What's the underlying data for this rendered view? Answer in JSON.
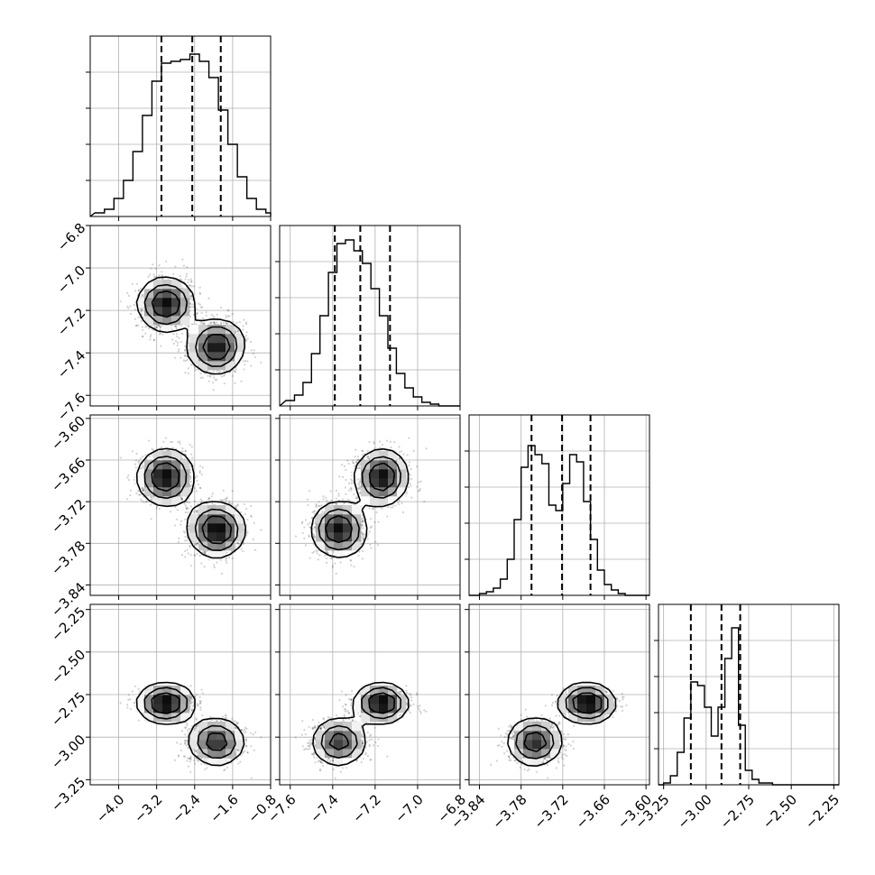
{
  "chart_data": {
    "type": "corner",
    "grid": true,
    "params": [
      {
        "range": [
          -4.6,
          -0.8
        ],
        "ticks": [
          -4.0,
          -3.2,
          -2.4,
          -1.6,
          -0.8
        ],
        "tick_labels": [
          "−4.0",
          "−3.2",
          "−2.4",
          "−1.6",
          "−0.8"
        ],
        "quantiles": [
          -3.1,
          -2.45,
          -1.85
        ],
        "mode": "normal",
        "center": -2.45,
        "sd": 0.6,
        "modes": [],
        "bins_x": [
          -4.4,
          -4.2,
          -4.0,
          -3.8,
          -3.6,
          -3.4,
          -3.2,
          -3.0,
          -2.8,
          -2.6,
          -2.4,
          -2.2,
          -2.0,
          -1.8,
          -1.6,
          -1.4,
          -1.2,
          -1.0,
          -0.8
        ],
        "hist": [
          0.02,
          0.04,
          0.1,
          0.2,
          0.36,
          0.56,
          0.75,
          0.85,
          0.86,
          0.87,
          0.9,
          0.86,
          0.77,
          0.59,
          0.4,
          0.22,
          0.1,
          0.04,
          0.02
        ]
      },
      {
        "range": [
          -7.65,
          -6.8
        ],
        "ticks": [
          -7.6,
          -7.4,
          -7.2,
          -7.0,
          -6.8
        ],
        "tick_labels": [
          "−7.6",
          "−7.4",
          "−7.2",
          "−7.0",
          "−6.8"
        ],
        "quantiles": [
          -7.39,
          -7.27,
          -7.13
        ],
        "mode": "normal",
        "center": -7.27,
        "sd": 0.1,
        "modes": [],
        "bins_x": [
          -7.6,
          -7.56,
          -7.52,
          -7.48,
          -7.44,
          -7.4,
          -7.36,
          -7.32,
          -7.28,
          -7.24,
          -7.2,
          -7.16,
          -7.12,
          -7.08,
          -7.04,
          -7.0,
          -6.96,
          -6.92,
          -6.88
        ],
        "hist": [
          0.03,
          0.06,
          0.13,
          0.29,
          0.5,
          0.74,
          0.9,
          0.92,
          0.86,
          0.79,
          0.65,
          0.5,
          0.32,
          0.18,
          0.1,
          0.05,
          0.02,
          0.01,
          0.0
        ]
      },
      {
        "range": [
          -3.855,
          -3.595
        ],
        "ticks": [
          -3.84,
          -3.78,
          -3.72,
          -3.66,
          -3.6
        ],
        "tick_labels": [
          "−3.84",
          "−3.78",
          "−3.72",
          "−3.66",
          "−3.60"
        ],
        "quantiles": [
          -3.765,
          -3.721,
          -3.68
        ],
        "mode": "bimodal",
        "center": -3.72,
        "sd": 0.045,
        "modes": [
          {
            "m": -3.76,
            "s": 0.018,
            "w": 0.5
          },
          {
            "m": -3.685,
            "s": 0.018,
            "w": 0.5
          }
        ],
        "bins_x": [
          -3.845,
          -3.835,
          -3.825,
          -3.815,
          -3.805,
          -3.795,
          -3.785,
          -3.775,
          -3.765,
          -3.755,
          -3.745,
          -3.735,
          -3.725,
          -3.715,
          -3.705,
          -3.695,
          -3.685,
          -3.675,
          -3.665,
          -3.655,
          -3.645,
          -3.635,
          -3.625,
          -3.615,
          -3.605
        ],
        "hist": [
          0.0,
          0.01,
          0.02,
          0.04,
          0.09,
          0.2,
          0.42,
          0.71,
          0.83,
          0.78,
          0.73,
          0.5,
          0.47,
          0.62,
          0.78,
          0.74,
          0.52,
          0.31,
          0.14,
          0.06,
          0.03,
          0.01,
          0.0,
          0.0,
          0.0
        ]
      },
      {
        "range": [
          -3.28,
          -2.22
        ],
        "ticks": [
          -3.25,
          -3.0,
          -2.75,
          -2.5,
          -2.25
        ],
        "tick_labels": [
          "−3.25",
          "−3.00",
          "−2.75",
          "−2.50",
          "−2.25"
        ],
        "quantiles": [
          -3.09,
          -2.91,
          -2.8
        ],
        "mode": "bimodal",
        "center": -2.9,
        "sd": 0.12,
        "modes": [
          {
            "m": -3.03,
            "s": 0.05,
            "w": 0.45
          },
          {
            "m": -2.8,
            "s": 0.03,
            "w": 0.55
          }
        ],
        "bins_x": [
          -3.27,
          -3.23,
          -3.19,
          -3.15,
          -3.11,
          -3.07,
          -3.03,
          -2.99,
          -2.95,
          -2.91,
          -2.87,
          -2.83,
          -2.79,
          -2.75,
          -2.71,
          -2.67,
          -2.63,
          -2.59,
          -2.55,
          -2.51,
          -2.47,
          -2.43,
          -2.39,
          -2.35,
          -2.31,
          -2.27
        ],
        "hist": [
          0.0,
          0.01,
          0.05,
          0.18,
          0.37,
          0.57,
          0.55,
          0.43,
          0.27,
          0.43,
          0.7,
          0.87,
          0.33,
          0.08,
          0.03,
          0.01,
          0.01,
          0.0,
          0.0,
          0.0,
          0.0,
          0.0,
          0.0,
          0.0,
          0.0,
          0.0
        ]
      }
    ],
    "correlations": [
      [
        1.0,
        -0.8,
        -0.75,
        -0.55
      ],
      [
        -0.8,
        1.0,
        0.8,
        0.6
      ],
      [
        -0.75,
        0.8,
        1.0,
        0.75
      ],
      [
        -0.55,
        0.6,
        0.75,
        1.0
      ]
    ]
  }
}
